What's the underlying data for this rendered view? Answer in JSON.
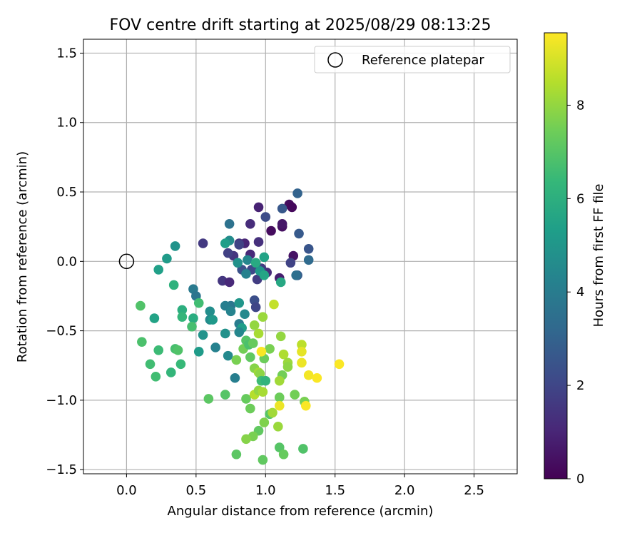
{
  "chart_data": {
    "type": "scatter",
    "title": "FOV centre drift starting at 2025/08/29 08:13:25",
    "xlabel": "Angular distance from reference (arcmin)",
    "ylabel": "Rotation from reference (arcmin)",
    "xlim": [
      -0.31,
      2.81
    ],
    "ylim": [
      -1.53,
      1.6
    ],
    "xticks": [
      0.0,
      0.5,
      1.0,
      1.5,
      2.0,
      2.5
    ],
    "xtick_labels": [
      "0.0",
      "0.5",
      "1.0",
      "1.5",
      "2.0",
      "2.5"
    ],
    "yticks": [
      -1.5,
      -1.0,
      -0.5,
      0.0,
      0.5,
      1.0,
      1.5
    ],
    "ytick_labels": [
      "−1.5",
      "−1.0",
      "−0.5",
      "0.0",
      "0.5",
      "1.0",
      "1.5"
    ],
    "grid": true,
    "legend": {
      "placement": "top-right",
      "entries": [
        "Reference platepar"
      ]
    },
    "reference_point": {
      "x": 0.0,
      "y": 0.0
    },
    "colorbar": {
      "label": "Hours from first FF file",
      "colormap": "viridis",
      "range": [
        0,
        9.55
      ],
      "ticks": [
        0,
        2,
        4,
        6,
        8
      ],
      "tick_labels": [
        "0",
        "2",
        "4",
        "6",
        "8"
      ]
    },
    "points": [
      {
        "x": 1.17,
        "y": 0.41,
        "h": 0.3
      },
      {
        "x": 1.19,
        "y": 0.39,
        "h": 0.2
      },
      {
        "x": 1.04,
        "y": 0.22,
        "h": 0.3
      },
      {
        "x": 1.12,
        "y": 0.25,
        "h": 0.4
      },
      {
        "x": 1.12,
        "y": 0.27,
        "h": 0.6
      },
      {
        "x": 1.2,
        "y": 0.04,
        "h": 0.5
      },
      {
        "x": 0.95,
        "y": 0.39,
        "h": 0.9
      },
      {
        "x": 0.89,
        "y": 0.27,
        "h": 1.2
      },
      {
        "x": 0.85,
        "y": 0.13,
        "h": 1.0
      },
      {
        "x": 0.81,
        "y": 0.13,
        "h": 1.4
      },
      {
        "x": 0.95,
        "y": 0.14,
        "h": 1.3
      },
      {
        "x": 0.89,
        "y": 0.05,
        "h": 1.1
      },
      {
        "x": 0.77,
        "y": 0.04,
        "h": 1.5
      },
      {
        "x": 0.73,
        "y": 0.06,
        "h": 1.8
      },
      {
        "x": 0.55,
        "y": 0.13,
        "h": 1.6
      },
      {
        "x": 1.1,
        "y": -0.12,
        "h": 0.8
      },
      {
        "x": 1.01,
        "y": -0.08,
        "h": 1.2
      },
      {
        "x": 0.97,
        "y": -0.05,
        "h": 1.6
      },
      {
        "x": 0.94,
        "y": -0.04,
        "h": 1.9
      },
      {
        "x": 0.9,
        "y": -0.06,
        "h": 2.1
      },
      {
        "x": 0.83,
        "y": -0.06,
        "h": 2.4
      },
      {
        "x": 0.69,
        "y": -0.14,
        "h": 1.5
      },
      {
        "x": 0.74,
        "y": -0.15,
        "h": 1.1
      },
      {
        "x": 0.94,
        "y": -0.13,
        "h": 1.7
      },
      {
        "x": 1.18,
        "y": -0.01,
        "h": 1.9
      },
      {
        "x": 1.0,
        "y": 0.32,
        "h": 2.2
      },
      {
        "x": 1.12,
        "y": 0.38,
        "h": 2.6
      },
      {
        "x": 1.23,
        "y": 0.49,
        "h": 3.0
      },
      {
        "x": 1.24,
        "y": 0.2,
        "h": 2.7
      },
      {
        "x": 1.31,
        "y": 0.09,
        "h": 2.5
      },
      {
        "x": 1.31,
        "y": 0.01,
        "h": 3.3
      },
      {
        "x": 1.23,
        "y": -0.1,
        "h": 2.8
      },
      {
        "x": 1.22,
        "y": -0.1,
        "h": 3.5
      },
      {
        "x": 0.92,
        "y": -0.28,
        "h": 2.3
      },
      {
        "x": 0.93,
        "y": -0.33,
        "h": 2.0
      },
      {
        "x": 0.81,
        "y": 0.12,
        "h": 1.9
      },
      {
        "x": 0.74,
        "y": 0.27,
        "h": 3.6
      },
      {
        "x": 0.74,
        "y": 0.15,
        "h": 4.6
      },
      {
        "x": 0.71,
        "y": 0.13,
        "h": 5.3
      },
      {
        "x": 0.8,
        "y": -0.01,
        "h": 4.8
      },
      {
        "x": 0.87,
        "y": 0.01,
        "h": 4.4
      },
      {
        "x": 0.99,
        "y": 0.03,
        "h": 5.5
      },
      {
        "x": 0.93,
        "y": -0.01,
        "h": 5.8
      },
      {
        "x": 0.96,
        "y": -0.07,
        "h": 5.1
      },
      {
        "x": 0.86,
        "y": -0.09,
        "h": 4.2
      },
      {
        "x": 0.99,
        "y": -0.1,
        "h": 5.6
      },
      {
        "x": 1.11,
        "y": -0.15,
        "h": 5.7
      },
      {
        "x": 0.48,
        "y": -0.2,
        "h": 3.9
      },
      {
        "x": 0.5,
        "y": -0.25,
        "h": 3.7
      },
      {
        "x": 0.35,
        "y": 0.11,
        "h": 4.9
      },
      {
        "x": 0.29,
        "y": 0.02,
        "h": 5.2
      },
      {
        "x": 0.23,
        "y": -0.06,
        "h": 5.4
      },
      {
        "x": 0.34,
        "y": -0.17,
        "h": 6.1
      },
      {
        "x": 0.52,
        "y": -0.3,
        "h": 6.6
      },
      {
        "x": 0.75,
        "y": -0.32,
        "h": 3.8
      },
      {
        "x": 0.71,
        "y": -0.32,
        "h": 4.1
      },
      {
        "x": 0.75,
        "y": -0.36,
        "h": 4.3
      },
      {
        "x": 0.81,
        "y": -0.3,
        "h": 5.0
      },
      {
        "x": 0.85,
        "y": -0.38,
        "h": 4.5
      },
      {
        "x": 0.6,
        "y": -0.36,
        "h": 4.7
      },
      {
        "x": 0.6,
        "y": -0.42,
        "h": 4.6
      },
      {
        "x": 0.62,
        "y": -0.42,
        "h": 5.1
      },
      {
        "x": 0.48,
        "y": -0.41,
        "h": 5.9
      },
      {
        "x": 0.4,
        "y": -0.35,
        "h": 6.0
      },
      {
        "x": 0.4,
        "y": -0.4,
        "h": 6.3
      },
      {
        "x": 0.2,
        "y": -0.41,
        "h": 5.5
      },
      {
        "x": 0.1,
        "y": -0.32,
        "h": 6.9
      },
      {
        "x": 0.47,
        "y": -0.47,
        "h": 6.7
      },
      {
        "x": 0.81,
        "y": -0.45,
        "h": 4.0
      },
      {
        "x": 0.83,
        "y": -0.48,
        "h": 5.3
      },
      {
        "x": 0.81,
        "y": -0.51,
        "h": 4.4
      },
      {
        "x": 0.71,
        "y": -0.52,
        "h": 4.8
      },
      {
        "x": 0.55,
        "y": -0.53,
        "h": 4.9
      },
      {
        "x": 0.64,
        "y": -0.62,
        "h": 4.2
      },
      {
        "x": 0.73,
        "y": -0.68,
        "h": 4.5
      },
      {
        "x": 0.52,
        "y": -0.65,
        "h": 5.2
      },
      {
        "x": 0.78,
        "y": -0.84,
        "h": 4.1
      },
      {
        "x": 0.86,
        "y": -0.57,
        "h": 7.0
      },
      {
        "x": 0.84,
        "y": -0.63,
        "h": 7.5
      },
      {
        "x": 0.88,
        "y": -0.6,
        "h": 6.8
      },
      {
        "x": 0.91,
        "y": -0.59,
        "h": 7.3
      },
      {
        "x": 0.79,
        "y": -0.71,
        "h": 7.6
      },
      {
        "x": 0.89,
        "y": -0.69,
        "h": 7.2
      },
      {
        "x": 0.92,
        "y": -0.77,
        "h": 7.8
      },
      {
        "x": 0.95,
        "y": -0.8,
        "h": 8.2
      },
      {
        "x": 0.96,
        "y": -0.81,
        "h": 7.9
      },
      {
        "x": 0.97,
        "y": -0.86,
        "h": 6.5
      },
      {
        "x": 1.0,
        "y": -0.86,
        "h": 6.2
      },
      {
        "x": 0.99,
        "y": -0.7,
        "h": 7.4
      },
      {
        "x": 1.03,
        "y": -0.63,
        "h": 7.6
      },
      {
        "x": 0.97,
        "y": -0.65,
        "h": 9.5
      },
      {
        "x": 0.92,
        "y": -0.46,
        "h": 8.0
      },
      {
        "x": 0.95,
        "y": -0.52,
        "h": 8.3
      },
      {
        "x": 0.98,
        "y": -0.4,
        "h": 8.1
      },
      {
        "x": 1.06,
        "y": -0.31,
        "h": 8.7
      },
      {
        "x": 1.11,
        "y": -0.54,
        "h": 8.0
      },
      {
        "x": 1.13,
        "y": -0.67,
        "h": 8.4
      },
      {
        "x": 1.16,
        "y": -0.73,
        "h": 8.1
      },
      {
        "x": 1.16,
        "y": -0.76,
        "h": 7.9
      },
      {
        "x": 1.12,
        "y": -0.82,
        "h": 7.5
      },
      {
        "x": 1.1,
        "y": -0.86,
        "h": 8.2
      },
      {
        "x": 1.26,
        "y": -0.6,
        "h": 8.6
      },
      {
        "x": 1.26,
        "y": -0.65,
        "h": 9.2
      },
      {
        "x": 1.26,
        "y": -0.73,
        "h": 9.3
      },
      {
        "x": 1.31,
        "y": -0.82,
        "h": 9.4
      },
      {
        "x": 1.37,
        "y": -0.84,
        "h": 9.5
      },
      {
        "x": 1.53,
        "y": -0.74,
        "h": 9.5
      },
      {
        "x": 0.17,
        "y": -0.74,
        "h": 6.6
      },
      {
        "x": 0.11,
        "y": -0.58,
        "h": 6.8
      },
      {
        "x": 0.23,
        "y": -0.64,
        "h": 6.5
      },
      {
        "x": 0.35,
        "y": -0.63,
        "h": 6.7
      },
      {
        "x": 0.37,
        "y": -0.64,
        "h": 6.9
      },
      {
        "x": 0.39,
        "y": -0.74,
        "h": 6.4
      },
      {
        "x": 0.32,
        "y": -0.8,
        "h": 6.3
      },
      {
        "x": 0.21,
        "y": -0.83,
        "h": 6.6
      },
      {
        "x": 0.59,
        "y": -0.99,
        "h": 7.1
      },
      {
        "x": 0.71,
        "y": -0.96,
        "h": 7.0
      },
      {
        "x": 0.86,
        "y": -0.99,
        "h": 7.3
      },
      {
        "x": 0.92,
        "y": -0.96,
        "h": 8.5
      },
      {
        "x": 0.95,
        "y": -0.93,
        "h": 8.0
      },
      {
        "x": 0.98,
        "y": -0.94,
        "h": 8.3
      },
      {
        "x": 0.89,
        "y": -1.06,
        "h": 7.4
      },
      {
        "x": 1.03,
        "y": -1.1,
        "h": 7.0
      },
      {
        "x": 1.05,
        "y": -1.09,
        "h": 8.2
      },
      {
        "x": 1.1,
        "y": -0.98,
        "h": 7.4
      },
      {
        "x": 1.1,
        "y": -1.04,
        "h": 9.3
      },
      {
        "x": 1.21,
        "y": -0.96,
        "h": 7.5
      },
      {
        "x": 1.28,
        "y": -1.01,
        "h": 7.6
      },
      {
        "x": 1.29,
        "y": -1.04,
        "h": 9.5
      },
      {
        "x": 0.99,
        "y": -1.16,
        "h": 7.7
      },
      {
        "x": 0.95,
        "y": -1.22,
        "h": 7.2
      },
      {
        "x": 0.91,
        "y": -1.26,
        "h": 7.6
      },
      {
        "x": 0.86,
        "y": -1.28,
        "h": 7.8
      },
      {
        "x": 1.09,
        "y": -1.19,
        "h": 8.1
      },
      {
        "x": 1.1,
        "y": -1.34,
        "h": 7.0
      },
      {
        "x": 1.13,
        "y": -1.39,
        "h": 7.3
      },
      {
        "x": 1.27,
        "y": -1.35,
        "h": 6.9
      },
      {
        "x": 0.79,
        "y": -1.39,
        "h": 7.1
      },
      {
        "x": 0.98,
        "y": -1.43,
        "h": 7.2
      }
    ]
  }
}
